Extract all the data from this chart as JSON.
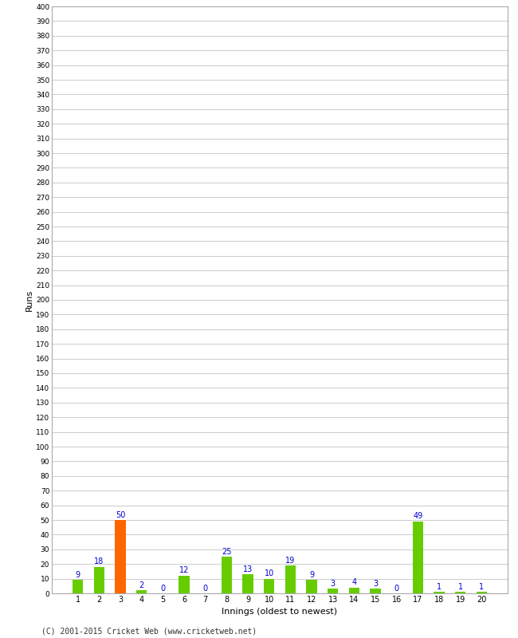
{
  "innings": [
    1,
    2,
    3,
    4,
    5,
    6,
    7,
    8,
    9,
    10,
    11,
    12,
    13,
    14,
    15,
    16,
    17,
    18,
    19,
    20
  ],
  "runs": [
    9,
    18,
    50,
    2,
    0,
    12,
    0,
    25,
    13,
    10,
    19,
    9,
    3,
    4,
    3,
    0,
    49,
    1,
    1,
    1
  ],
  "colors": [
    "#66cc00",
    "#66cc00",
    "#ff6600",
    "#66cc00",
    "#66cc00",
    "#66cc00",
    "#66cc00",
    "#66cc00",
    "#66cc00",
    "#66cc00",
    "#66cc00",
    "#66cc00",
    "#66cc00",
    "#66cc00",
    "#66cc00",
    "#66cc00",
    "#66cc00",
    "#66cc00",
    "#66cc00",
    "#66cc00"
  ],
  "xlabel": "Innings (oldest to newest)",
  "ylabel": "Runs",
  "ylim": [
    0,
    400
  ],
  "yticks": [
    0,
    10,
    20,
    30,
    40,
    50,
    60,
    70,
    80,
    90,
    100,
    110,
    120,
    130,
    140,
    150,
    160,
    170,
    180,
    190,
    200,
    210,
    220,
    230,
    240,
    250,
    260,
    270,
    280,
    290,
    300,
    310,
    320,
    330,
    340,
    350,
    360,
    370,
    380,
    390,
    400
  ],
  "label_color": "#0000cc",
  "grid_color": "#cccccc",
  "bg_color": "#ffffff",
  "footer": "(C) 2001-2015 Cricket Web (www.cricketweb.net)"
}
